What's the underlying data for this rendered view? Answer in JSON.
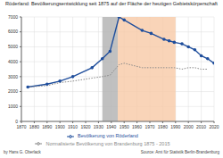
{
  "chart_data": {
    "type": "line",
    "title": "Röderland: Bevölkerungsentwicklung seit 1875 auf der Fläche der heutigen Gebietskörperschaft",
    "x": [
      1875,
      1890,
      1900,
      1910,
      1925,
      1933,
      1939,
      1946,
      1950,
      1964,
      1971,
      1981,
      1985,
      1989,
      1995,
      2000,
      2005,
      2010,
      2015,
      2020
    ],
    "series": [
      {
        "name": "Bevölkerung von Röderland",
        "color": "#1f4e9c",
        "marker": "circle",
        "line_style": "solid",
        "values": [
          2300,
          2500,
          2700,
          3000,
          3600,
          4200,
          4700,
          7000,
          6800,
          6100,
          5900,
          5500,
          5400,
          5300,
          5200,
          5000,
          4800,
          4400,
          4200,
          3900
        ]
      },
      {
        "name": "Normalisierte Bevölkerung von Brandenburg 1875 - 2015",
        "color": "#888888",
        "marker": "none",
        "line_style": "dotted",
        "values": [
          2300,
          2400,
          2600,
          2700,
          2900,
          3000,
          3100,
          3800,
          3900,
          3600,
          3600,
          3600,
          3600,
          3600,
          3500,
          3600,
          3600,
          3500,
          3500,
          null
        ]
      }
    ],
    "periods": [
      {
        "from": 1933,
        "to": 1945,
        "color": "#b0b0b0"
      },
      {
        "from": 1945,
        "to": 1990,
        "color": "#f7c9a6"
      }
    ],
    "xlim": [
      1870,
      2020
    ],
    "xticks": [
      1870,
      1880,
      1890,
      1900,
      1910,
      1920,
      1930,
      1940,
      1950,
      1960,
      1970,
      1980,
      1990,
      2000,
      2010,
      2020
    ],
    "ylim": [
      0,
      7000
    ],
    "yticks": [
      0,
      1000,
      2000,
      3000,
      4000,
      5000,
      6000,
      7000
    ],
    "grid": true,
    "author": "by Hans G. Oberlack",
    "source": "Source: Amt für Statistik Berlin-Brandenburg"
  }
}
